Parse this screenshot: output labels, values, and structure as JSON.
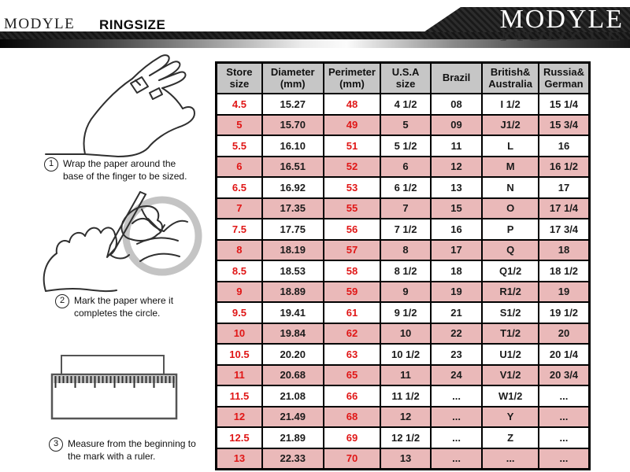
{
  "header": {
    "brand_left": "MODYLE",
    "page_title": "RINGSIZE",
    "banner_brand": "MODYLE"
  },
  "instructions": [
    {
      "number": "1",
      "text": "Wrap the paper around the base of the finger to be sized."
    },
    {
      "number": "2",
      "text": "Mark the paper where it completes the circle."
    },
    {
      "number": "3",
      "text": "Measure from the beginning to the mark with a ruler."
    }
  ],
  "illustrations": {
    "step1": "hand-with-paper-strip",
    "step2": "pencil-marking-paper-on-finger",
    "step3": "ruler-measuring-paper-strip"
  },
  "ring_size_table": {
    "columns": [
      "Store size",
      "Diameter (mm)",
      "Perimeter (mm)",
      "U.S.A size",
      "Brazil",
      "British& Australia",
      "Russia& German"
    ],
    "red_column_indexes": [
      0,
      2
    ],
    "rows": [
      [
        "4.5",
        "15.27",
        "48",
        "4 1/2",
        "08",
        "I 1/2",
        "15 1/4"
      ],
      [
        "5",
        "15.70",
        "49",
        "5",
        "09",
        "J1/2",
        "15 3/4"
      ],
      [
        "5.5",
        "16.10",
        "51",
        "5 1/2",
        "11",
        "L",
        "16"
      ],
      [
        "6",
        "16.51",
        "52",
        "6",
        "12",
        "M",
        "16 1/2"
      ],
      [
        "6.5",
        "16.92",
        "53",
        "6 1/2",
        "13",
        "N",
        "17"
      ],
      [
        "7",
        "17.35",
        "55",
        "7",
        "15",
        "O",
        "17 1/4"
      ],
      [
        "7.5",
        "17.75",
        "56",
        "7 1/2",
        "16",
        "P",
        "17 3/4"
      ],
      [
        "8",
        "18.19",
        "57",
        "8",
        "17",
        "Q",
        "18"
      ],
      [
        "8.5",
        "18.53",
        "58",
        "8 1/2",
        "18",
        "Q1/2",
        "18 1/2"
      ],
      [
        "9",
        "18.89",
        "59",
        "9",
        "19",
        "R1/2",
        "19"
      ],
      [
        "9.5",
        "19.41",
        "61",
        "9 1/2",
        "21",
        "S1/2",
        "19 1/2"
      ],
      [
        "10",
        "19.84",
        "62",
        "10",
        "22",
        "T1/2",
        "20"
      ],
      [
        "10.5",
        "20.20",
        "63",
        "10 1/2",
        "23",
        "U1/2",
        "20 1/4"
      ],
      [
        "11",
        "20.68",
        "65",
        "11",
        "24",
        "V1/2",
        "20 3/4"
      ],
      [
        "11.5",
        "21.08",
        "66",
        "11 1/2",
        "...",
        "W1/2",
        "..."
      ],
      [
        "12",
        "21.49",
        "68",
        "12",
        "...",
        "Y",
        "..."
      ],
      [
        "12.5",
        "21.89",
        "69",
        "12 1/2",
        "...",
        "Z",
        "..."
      ],
      [
        "13",
        "22.33",
        "70",
        "13",
        "...",
        "...",
        "..."
      ]
    ]
  },
  "colors": {
    "row_highlight_pink": "#eab9b9",
    "table_header_gray": "#c6c6c6",
    "accent_red": "#e01616",
    "banner_black": "#1c1c1c"
  }
}
